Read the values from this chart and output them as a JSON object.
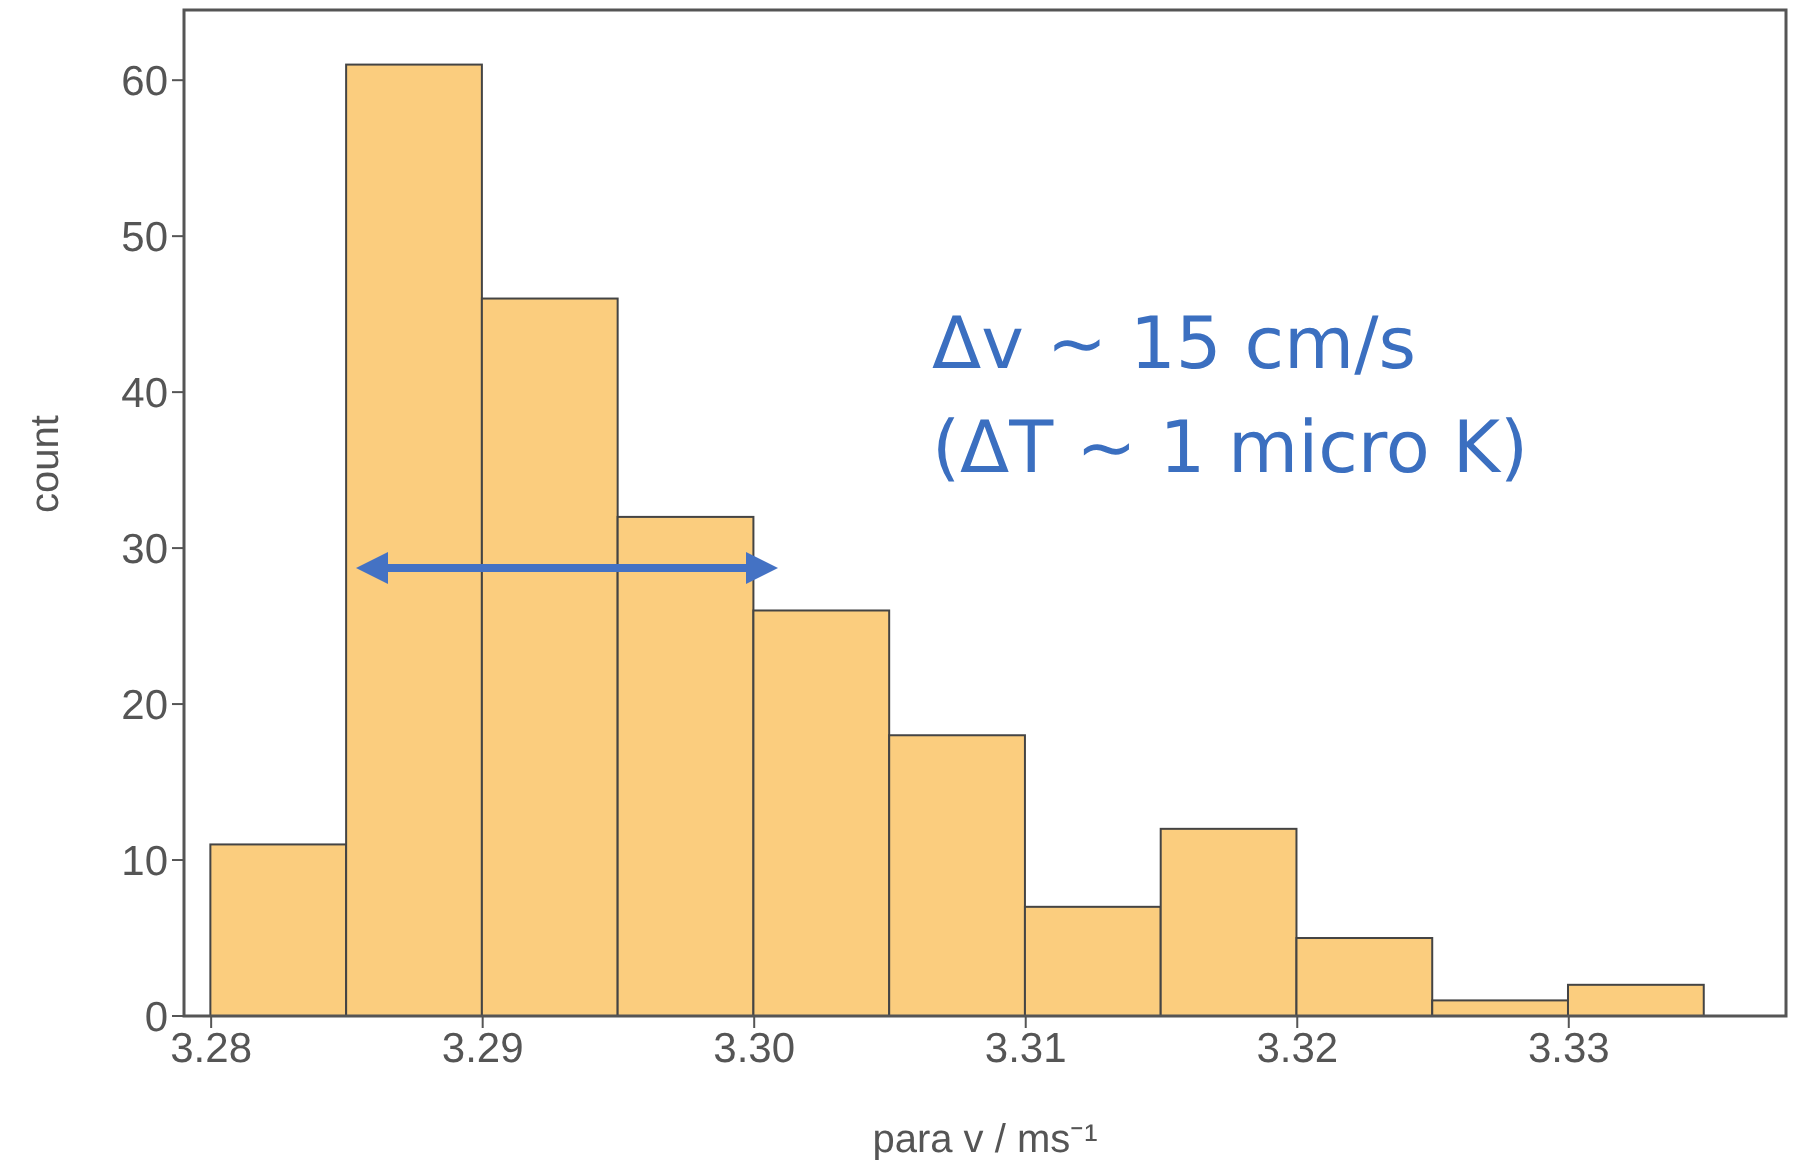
{
  "chart_data": {
    "type": "histogram",
    "xlabel": "para v / ms⁻¹",
    "ylabel": "count",
    "bins": [
      3.28,
      3.285,
      3.29,
      3.295,
      3.3,
      3.305,
      3.31,
      3.315,
      3.32,
      3.325,
      3.33,
      3.335
    ],
    "values": [
      11,
      61,
      46,
      32,
      26,
      18,
      7,
      12,
      5,
      1,
      2
    ],
    "color": "#fbcd7e",
    "xlim": [
      3.279,
      3.338
    ],
    "ylim": [
      0,
      64.5
    ],
    "xticks": [
      {
        "value": 3.28,
        "label": "3.28"
      },
      {
        "value": 3.29,
        "label": "3.29"
      },
      {
        "value": 3.3,
        "label": "3.30"
      },
      {
        "value": 3.31,
        "label": "3.31"
      },
      {
        "value": 3.32,
        "label": "3.32"
      },
      {
        "value": 3.33,
        "label": "3.33"
      }
    ],
    "yticks": [
      0,
      10,
      20,
      30,
      40,
      50,
      60
    ],
    "grid": false,
    "annotations": [
      "Δv ~ 15 cm/s",
      "(ΔT ~ 1 micro K)"
    ]
  }
}
